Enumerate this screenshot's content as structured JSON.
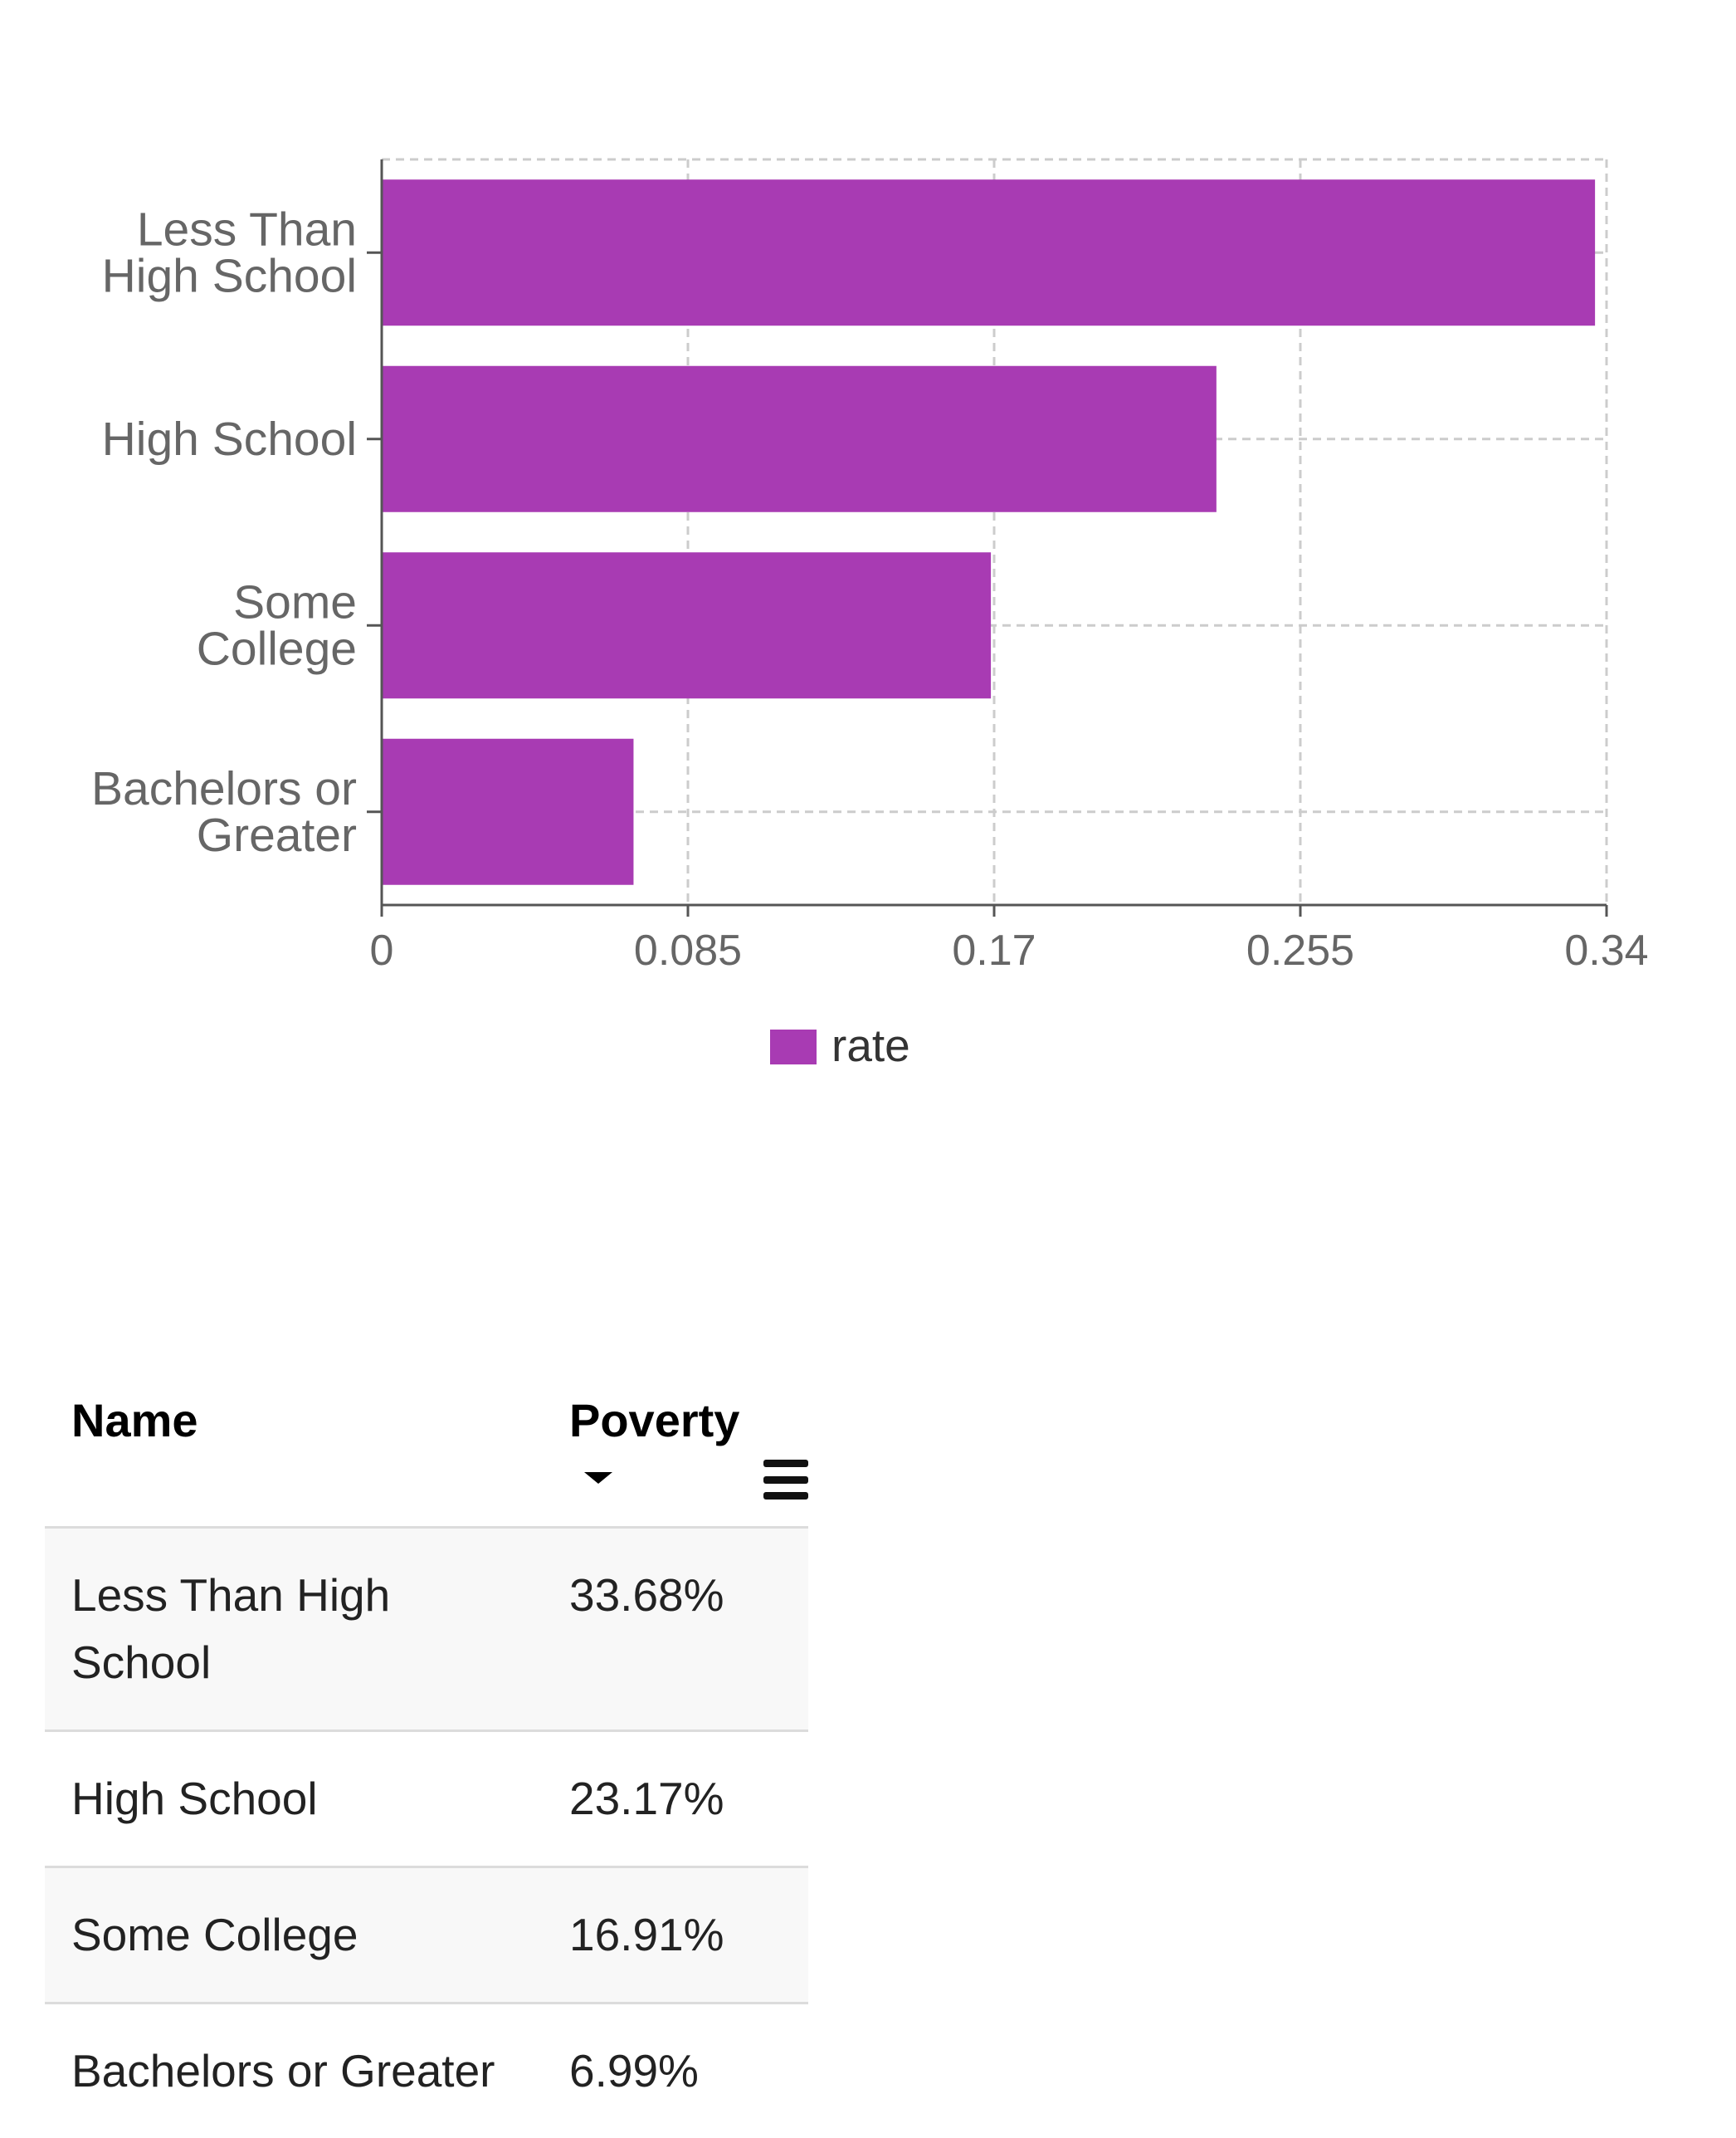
{
  "chart_data": {
    "type": "bar",
    "orientation": "horizontal",
    "categories": [
      "Less Than High School",
      "High School",
      "Some College",
      "Bachelors or Greater"
    ],
    "category_label_lines": [
      [
        "Less Than",
        "High School"
      ],
      [
        "High School"
      ],
      [
        "Some",
        "College"
      ],
      [
        "Bachelors or",
        "Greater"
      ]
    ],
    "series": [
      {
        "name": "rate",
        "values": [
          0.3368,
          0.2317,
          0.1691,
          0.0699
        ],
        "color": "#A83BB3"
      }
    ],
    "xlim": [
      0,
      0.34
    ],
    "xticks": [
      0,
      0.085,
      0.17,
      0.255,
      0.34
    ],
    "xtick_labels": [
      "0",
      "0.085",
      "0.17",
      "0.255",
      "0.34"
    ],
    "grid": true,
    "legend_position": "bottom-center"
  },
  "table": {
    "columns": [
      "Name",
      "Poverty"
    ],
    "sorted_column": "Poverty",
    "sort_direction": "descending",
    "rows": [
      {
        "name": "Less Than High School",
        "poverty": "33.68%"
      },
      {
        "name": "High School",
        "poverty": "23.17%"
      },
      {
        "name": "Some College",
        "poverty": "16.91%"
      },
      {
        "name": "Bachelors or Greater",
        "poverty": "6.99%"
      }
    ]
  }
}
